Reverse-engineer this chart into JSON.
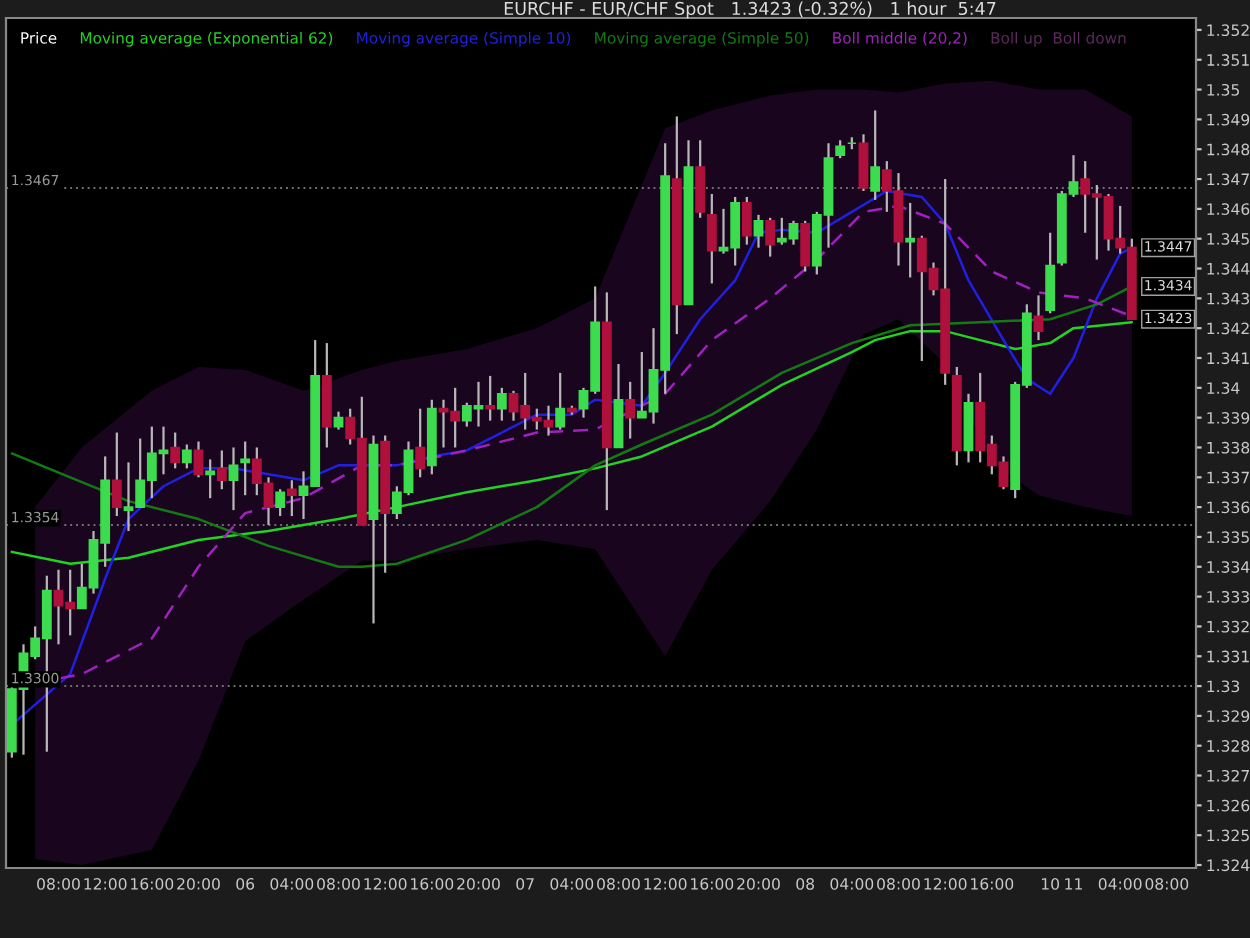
{
  "chart_data": {
    "type": "candlestick",
    "title": "EURCHF - EUR/CHF Spot   1.3423 (-0.32%)   1 hour  5:47",
    "legend_title": "Price",
    "legend": "top left",
    "categories": [
      null,
      null,
      null,
      null,
      "08:00",
      null,
      null,
      null,
      "12:00",
      null,
      null,
      null,
      "16:00",
      null,
      null,
      null,
      "20:00",
      null,
      null,
      null,
      "06",
      null,
      null,
      null,
      "04:00",
      null,
      null,
      null,
      "08:00",
      null,
      null,
      null,
      "12:00",
      null,
      null,
      null,
      "16:00",
      null,
      null,
      null,
      "20:00",
      null,
      null,
      null,
      "07",
      null,
      null,
      null,
      "04:00",
      null,
      null,
      null,
      "08:00",
      null,
      null,
      null,
      "12:00",
      null,
      null,
      null,
      "16:00",
      null,
      null,
      null,
      "20:00",
      null,
      null,
      null,
      "08",
      null,
      null,
      null,
      "04:00",
      null,
      null,
      null,
      "08:00",
      null,
      null,
      null,
      "12:00",
      null,
      null,
      null,
      "16:00",
      null,
      null,
      null,
      null,
      "10",
      null,
      "11",
      null,
      null,
      null,
      "04:00",
      null,
      null,
      null,
      "08:00",
      null,
      null
    ],
    "ohlc": [
      [
        1.3278,
        1.3301,
        1.3276,
        1.3299
      ],
      [
        1.3299,
        1.3314,
        1.3277,
        1.3311
      ],
      [
        1.331,
        1.332,
        1.3309,
        1.3316
      ],
      [
        1.3316,
        1.3337,
        1.3278,
        1.3332
      ],
      [
        1.3332,
        1.3339,
        1.3314,
        1.3327
      ],
      [
        1.3328,
        1.3339,
        1.3317,
        1.3326
      ],
      [
        1.3326,
        1.3341,
        1.3326,
        1.3333
      ],
      [
        1.3333,
        1.3352,
        1.3331,
        1.3349
      ],
      [
        1.3348,
        1.3377,
        1.334,
        1.3369
      ],
      [
        1.3369,
        1.3385,
        1.3357,
        1.336
      ],
      [
        1.3359,
        1.3375,
        1.3352,
        1.336
      ],
      [
        1.336,
        1.3383,
        1.336,
        1.3369
      ],
      [
        1.3369,
        1.3387,
        1.3363,
        1.3378
      ],
      [
        1.3378,
        1.3387,
        1.3371,
        1.3379
      ],
      [
        1.338,
        1.3385,
        1.3373,
        1.3375
      ],
      [
        1.3375,
        1.3381,
        1.3373,
        1.3379
      ],
      [
        1.3379,
        1.3382,
        1.337,
        1.3371
      ],
      [
        1.3371,
        1.3376,
        1.3363,
        1.3372
      ],
      [
        1.3373,
        1.3379,
        1.3366,
        1.3369
      ],
      [
        1.3369,
        1.338,
        1.3359,
        1.3374
      ],
      [
        1.3375,
        1.3382,
        1.3364,
        1.3376
      ],
      [
        1.3376,
        1.338,
        1.3364,
        1.3368
      ],
      [
        1.3368,
        1.337,
        1.3354,
        1.336
      ],
      [
        1.336,
        1.3366,
        1.3357,
        1.3365
      ],
      [
        1.3366,
        1.3369,
        1.3357,
        1.3364
      ],
      [
        1.3364,
        1.3372,
        1.3356,
        1.3367
      ],
      [
        1.3367,
        1.3416,
        1.3367,
        1.3404
      ],
      [
        1.3404,
        1.3415,
        1.338,
        1.3387
      ],
      [
        1.3387,
        1.3392,
        1.3386,
        1.339
      ],
      [
        1.339,
        1.3393,
        1.3381,
        1.3383
      ],
      [
        1.3383,
        1.3397,
        1.3354,
        1.3354
      ],
      [
        1.3356,
        1.3384,
        1.3321,
        1.3381
      ],
      [
        1.3382,
        1.3384,
        1.3338,
        1.3358
      ],
      [
        1.3358,
        1.3367,
        1.3356,
        1.3365
      ],
      [
        1.3365,
        1.3382,
        1.3364,
        1.3379
      ],
      [
        1.338,
        1.3393,
        1.337,
        1.3373
      ],
      [
        1.3374,
        1.3396,
        1.3371,
        1.3393
      ],
      [
        1.3393,
        1.3396,
        1.338,
        1.3392
      ],
      [
        1.3392,
        1.34,
        1.338,
        1.3389
      ],
      [
        1.3389,
        1.3395,
        1.3387,
        1.3394
      ],
      [
        1.3393,
        1.3402,
        1.3387,
        1.3394
      ],
      [
        1.3394,
        1.3404,
        1.3389,
        1.3393
      ],
      [
        1.3393,
        1.34,
        1.3389,
        1.3398
      ],
      [
        1.3398,
        1.3399,
        1.3389,
        1.3392
      ],
      [
        1.3394,
        1.3405,
        1.3386,
        1.339
      ],
      [
        1.339,
        1.3393,
        1.3386,
        1.3389
      ],
      [
        1.3389,
        1.3394,
        1.3384,
        1.3387
      ],
      [
        1.3387,
        1.3405,
        1.3386,
        1.3393
      ],
      [
        1.3393,
        1.3394,
        1.3391,
        1.3392
      ],
      [
        1.3393,
        1.34,
        1.339,
        1.3399
      ],
      [
        1.3399,
        1.3434,
        1.3398,
        1.3422
      ],
      [
        1.3422,
        1.3432,
        1.3359,
        1.338
      ],
      [
        1.338,
        1.3408,
        1.338,
        1.3396
      ],
      [
        1.3396,
        1.3402,
        1.3383,
        1.339
      ],
      [
        1.339,
        1.3412,
        1.339,
        1.3392
      ],
      [
        1.3392,
        1.342,
        1.3388,
        1.3406
      ],
      [
        1.3406,
        1.3482,
        1.3398,
        1.3471
      ],
      [
        1.347,
        1.3491,
        1.3418,
        1.3428
      ],
      [
        1.3428,
        1.3483,
        1.3428,
        1.3474
      ],
      [
        1.3474,
        1.3483,
        1.3457,
        1.3459
      ],
      [
        1.3458,
        1.3465,
        1.3435,
        1.3446
      ],
      [
        1.3446,
        1.346,
        1.3445,
        1.3447
      ],
      [
        1.3447,
        1.3464,
        1.3441,
        1.3462
      ],
      [
        1.3462,
        1.3464,
        1.3448,
        1.3451
      ],
      [
        1.3451,
        1.3458,
        1.3447,
        1.3456
      ],
      [
        1.3456,
        1.3457,
        1.3444,
        1.3448
      ],
      [
        1.3449,
        1.3457,
        1.3448,
        1.345
      ],
      [
        1.345,
        1.3456,
        1.3448,
        1.3455
      ],
      [
        1.3455,
        1.3456,
        1.3439,
        1.3441
      ],
      [
        1.3441,
        1.3459,
        1.3438,
        1.3458
      ],
      [
        1.3458,
        1.3482,
        1.3447,
        1.3477
      ],
      [
        1.3478,
        1.3483,
        1.3477,
        1.3481
      ],
      [
        1.3482,
        1.3484,
        1.348,
        1.3482
      ],
      [
        1.3482,
        1.3485,
        1.3466,
        1.3467
      ],
      [
        1.3466,
        1.3493,
        1.3463,
        1.3474
      ],
      [
        1.3473,
        1.3476,
        1.3459,
        1.3466
      ],
      [
        1.3466,
        1.3472,
        1.3441,
        1.3449
      ],
      [
        1.3449,
        1.3462,
        1.3437,
        1.345
      ],
      [
        1.345,
        1.3451,
        1.3409,
        1.3439
      ],
      [
        1.344,
        1.3442,
        1.3431,
        1.3433
      ],
      [
        1.3433,
        1.347,
        1.3401,
        1.3405
      ],
      [
        1.3404,
        1.3407,
        1.3374,
        1.3379
      ],
      [
        1.3379,
        1.3398,
        1.3375,
        1.3395
      ],
      [
        1.3395,
        1.3405,
        1.3375,
        1.3379
      ],
      [
        1.3381,
        1.3384,
        1.3371,
        1.3374
      ],
      [
        1.3375,
        1.3377,
        1.3366,
        1.3367
      ],
      [
        1.3366,
        1.3402,
        1.3363,
        1.3401
      ],
      [
        1.3401,
        1.3428,
        1.34,
        1.3425
      ],
      [
        1.3424,
        1.3431,
        1.3416,
        1.3419
      ],
      [
        1.3426,
        1.3452,
        1.3425,
        1.3441
      ],
      [
        1.3442,
        1.3466,
        1.3441,
        1.3465
      ],
      [
        1.3465,
        1.3478,
        1.3464,
        1.3469
      ],
      [
        1.347,
        1.3476,
        1.3452,
        1.3465
      ],
      [
        1.3465,
        1.3468,
        1.3443,
        1.3464
      ],
      [
        1.3464,
        1.3465,
        1.3446,
        1.345
      ],
      [
        1.345,
        1.3461,
        1.3445,
        1.3447
      ],
      [
        1.3447,
        1.345,
        1.3423,
        1.3423
      ],
      null,
      null,
      null,
      null,
      null
    ],
    "colors": [
      "#3ddc4f",
      "#3ddc4f",
      "#3ddc4f",
      "#3ddc4f",
      "#b0103c",
      "#b0103c",
      "#3ddc4f",
      "#3ddc4f",
      "#3ddc4f",
      "#b0103c",
      "#3ddc4f",
      "#3ddc4f",
      "#3ddc4f",
      "#3ddc4f",
      "#b0103c",
      "#3ddc4f",
      "#b0103c",
      "#3ddc4f",
      "#b0103c",
      "#3ddc4f",
      "#3ddc4f",
      "#b0103c",
      "#b0103c",
      "#3ddc4f",
      "#b0103c",
      "#3ddc4f",
      "#3ddc4f",
      "#b0103c",
      "#3ddc4f",
      "#b0103c",
      "#b0103c",
      "#3ddc4f",
      "#b0103c",
      "#3ddc4f",
      "#3ddc4f",
      "#b0103c",
      "#3ddc4f",
      "#b0103c",
      "#b0103c",
      "#3ddc4f",
      "#3ddc4f",
      "#b0103c",
      "#3ddc4f",
      "#b0103c",
      "#b0103c",
      "#b0103c",
      "#b0103c",
      "#3ddc4f",
      "#b0103c",
      "#3ddc4f",
      "#3ddc4f",
      "#b0103c",
      "#3ddc4f",
      "#b0103c",
      "#3ddc4f",
      "#3ddc4f",
      "#3ddc4f",
      "#b0103c",
      "#3ddc4f",
      "#b0103c",
      "#b0103c",
      "#3ddc4f",
      "#3ddc4f",
      "#b0103c",
      "#3ddc4f",
      "#b0103c",
      "#3ddc4f",
      "#3ddc4f",
      "#b0103c",
      "#3ddc4f",
      "#3ddc4f",
      "#3ddc4f",
      "#3ddc4f",
      "#b0103c",
      "#3ddc4f",
      "#b0103c",
      "#b0103c",
      "#3ddc4f",
      "#b0103c",
      "#b0103c",
      "#b0103c",
      "#b0103c",
      "#3ddc4f",
      "#b0103c",
      "#b0103c",
      "#b0103c",
      "#3ddc4f",
      "#3ddc4f",
      "#b0103c",
      "#3ddc4f",
      "#3ddc4f",
      "#3ddc4f",
      "#b0103c",
      "#b0103c",
      "#b0103c",
      "#b0103c",
      "#b0103c",
      null,
      null,
      null,
      null,
      null
    ],
    "series": [
      {
        "name": "Moving average (Exponential 62)",
        "type": "line",
        "color": "#22d422",
        "values": [
          1.3345,
          null,
          null,
          null,
          null,
          1.3341,
          null,
          null,
          null,
          null,
          1.3343,
          null,
          null,
          null,
          null,
          null,
          1.3349,
          null,
          null,
          null,
          null,
          null,
          1.3352,
          null,
          null,
          null,
          null,
          null,
          1.3356,
          null,
          null,
          null,
          null,
          1.336,
          null,
          null,
          null,
          null,
          null,
          1.3365,
          null,
          null,
          null,
          null,
          null,
          1.3369,
          null,
          null,
          null,
          null,
          1.3373,
          null,
          null,
          null,
          1.3377,
          null,
          null,
          null,
          null,
          null,
          1.3387,
          null,
          null,
          null,
          null,
          null,
          1.3401,
          null,
          null,
          null,
          null,
          null,
          1.3412,
          null,
          1.3416,
          null,
          null,
          1.3419,
          null,
          null,
          1.3419,
          null,
          null,
          1.3416,
          null,
          null,
          1.3413,
          null,
          null,
          1.3415,
          null,
          1.342,
          null,
          null,
          null,
          null,
          1.3422,
          null,
          null,
          null,
          null,
          null
        ]
      },
      {
        "name": "Moving average (Simple 10)",
        "type": "line",
        "color": "#2020e0",
        "values": [
          1.3287,
          null,
          null,
          null,
          null,
          1.3304,
          null,
          null,
          1.3336,
          null,
          1.3356,
          null,
          null,
          1.3367,
          null,
          null,
          1.3373,
          null,
          null,
          1.3373,
          null,
          null,
          1.3371,
          null,
          null,
          1.3369,
          null,
          null,
          1.3374,
          null,
          null,
          null,
          null,
          1.3374,
          null,
          null,
          1.3377,
          null,
          null,
          1.3379,
          null,
          null,
          1.3385,
          null,
          null,
          1.3391,
          null,
          null,
          1.3391,
          null,
          1.3396,
          null,
          null,
          null,
          1.3394,
          null,
          1.3405,
          null,
          null,
          1.3423,
          null,
          null,
          1.3436,
          null,
          1.3452,
          null,
          1.3453,
          null,
          null,
          1.3452,
          null,
          null,
          1.3459,
          null,
          null,
          1.3466,
          null,
          null,
          1.3464,
          null,
          1.3455,
          null,
          1.3436,
          null,
          null,
          1.3416,
          null,
          1.3403,
          null,
          1.3398,
          null,
          1.341,
          null,
          1.343,
          null,
          1.3445,
          1.3447,
          null,
          null,
          null,
          null,
          null
        ]
      },
      {
        "name": "Moving average (Simple 50)",
        "type": "line",
        "color": "#127a12",
        "values": [
          1.3378,
          null,
          null,
          null,
          null,
          1.337,
          null,
          null,
          null,
          null,
          1.3362,
          null,
          null,
          null,
          null,
          null,
          1.3356,
          null,
          null,
          null,
          null,
          null,
          1.3347,
          null,
          null,
          null,
          null,
          null,
          1.334,
          null,
          1.334,
          null,
          null,
          1.3341,
          null,
          null,
          null,
          null,
          null,
          1.3349,
          null,
          null,
          null,
          null,
          null,
          1.336,
          null,
          null,
          null,
          null,
          1.3374,
          null,
          null,
          null,
          1.3381,
          null,
          null,
          null,
          null,
          null,
          1.3391,
          null,
          null,
          null,
          null,
          null,
          1.3405,
          null,
          null,
          null,
          null,
          null,
          1.3415,
          null,
          null,
          null,
          null,
          1.3421,
          null,
          null,
          null,
          null,
          null,
          1.3422,
          null,
          null,
          null,
          null,
          null,
          1.3423,
          null,
          null,
          null,
          1.3428,
          null,
          null,
          1.3434,
          null,
          null,
          null,
          null,
          null
        ]
      },
      {
        "name": "Boll middle (20,2)",
        "type": "line",
        "line_style": "dashed",
        "color": "#a020c0",
        "values": [
          null,
          null,
          1.3301,
          null,
          null,
          null,
          1.3304,
          null,
          null,
          null,
          null,
          null,
          1.3316,
          null,
          null,
          null,
          1.334,
          null,
          null,
          null,
          1.3358,
          null,
          null,
          null,
          null,
          1.3363,
          null,
          null,
          null,
          null,
          1.3374,
          null,
          null,
          1.3374,
          null,
          null,
          null,
          null,
          null,
          1.3379,
          null,
          null,
          null,
          null,
          null,
          1.3385,
          null,
          null,
          null,
          null,
          1.3386,
          null,
          null,
          null,
          null,
          null,
          1.3398,
          null,
          null,
          null,
          1.3416,
          null,
          null,
          null,
          null,
          1.343,
          null,
          null,
          null,
          1.3443,
          null,
          null,
          null,
          1.3459,
          null,
          null,
          1.3461,
          null,
          null,
          null,
          1.3455,
          null,
          null,
          null,
          1.3439,
          null,
          null,
          null,
          1.3432,
          null,
          null,
          null,
          1.343,
          null,
          null,
          null,
          1.3424,
          null,
          null,
          null,
          null,
          null
        ],
        "upper": [
          null,
          null,
          1.336,
          null,
          null,
          null,
          1.338,
          null,
          null,
          null,
          null,
          null,
          1.3399,
          null,
          null,
          null,
          1.3407,
          null,
          null,
          null,
          1.3406,
          null,
          null,
          null,
          null,
          1.3399,
          null,
          null,
          null,
          null,
          1.3406,
          null,
          null,
          1.3409,
          null,
          null,
          null,
          null,
          null,
          1.3413,
          null,
          null,
          null,
          null,
          null,
          1.342,
          null,
          null,
          null,
          null,
          1.343,
          null,
          null,
          null,
          null,
          null,
          1.3487,
          null,
          null,
          null,
          1.3493,
          null,
          null,
          null,
          null,
          1.3498,
          null,
          null,
          null,
          1.35,
          null,
          null,
          null,
          1.35,
          null,
          null,
          1.3499,
          null,
          null,
          null,
          1.3502,
          null,
          null,
          null,
          1.3503,
          null,
          null,
          null,
          1.35,
          null,
          null,
          null,
          1.35,
          null,
          null,
          null,
          1.3491,
          null,
          null,
          null,
          null,
          null
        ],
        "lower": [
          null,
          null,
          1.3242,
          null,
          null,
          null,
          1.324,
          null,
          null,
          null,
          null,
          null,
          1.3245,
          null,
          null,
          null,
          1.3275,
          null,
          null,
          null,
          1.3315,
          null,
          null,
          null,
          null,
          1.3329,
          null,
          null,
          null,
          null,
          1.3342,
          null,
          null,
          1.3342,
          null,
          null,
          null,
          null,
          null,
          1.3346,
          null,
          null,
          null,
          null,
          null,
          1.3349,
          null,
          null,
          null,
          null,
          1.3346,
          null,
          null,
          null,
          null,
          null,
          1.331,
          null,
          null,
          null,
          1.3339,
          null,
          null,
          null,
          null,
          1.3362,
          null,
          null,
          null,
          1.3386,
          null,
          null,
          null,
          1.3418,
          null,
          null,
          1.3423,
          null,
          null,
          null,
          1.3408,
          null,
          null,
          null,
          1.3375,
          null,
          null,
          null,
          1.3364,
          null,
          null,
          null,
          1.336,
          null,
          null,
          null,
          1.3357,
          null,
          null,
          null,
          null,
          null
        ]
      }
    ],
    "annotations": [
      "Boll up  Boll down",
      {
        "text": "1.3447",
        "y": 1.3447
      },
      {
        "text": "1.3434",
        "y": 1.3434
      },
      {
        "text": "1.3423",
        "y": 1.3423
      }
    ],
    "ref_lines": [
      {
        "axis": "y",
        "value": 1.3467,
        "label": "1.3467",
        "line_style": "dotted"
      },
      {
        "axis": "y",
        "value": 1.3354,
        "label": "1.3354",
        "line_style": "dotted"
      },
      {
        "axis": "y",
        "value": 1.33,
        "label": "1.3300",
        "line_style": "dotted"
      }
    ],
    "ylim": [
      1.3239,
      1.3524
    ],
    "yticks": [
      1.324,
      1.325,
      1.326,
      1.327,
      1.328,
      1.329,
      1.33,
      1.331,
      1.332,
      1.333,
      1.334,
      1.335,
      1.336,
      1.337,
      1.338,
      1.339,
      1.34,
      1.341,
      1.342,
      1.343,
      1.344,
      1.345,
      1.346,
      1.347,
      1.348,
      1.349,
      1.35,
      1.351,
      1.352
    ]
  }
}
